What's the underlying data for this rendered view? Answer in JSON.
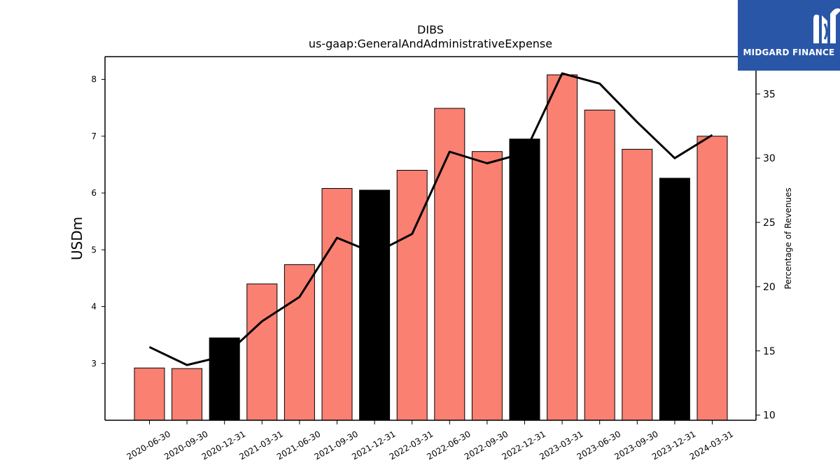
{
  "brand": {
    "name": "MIDGARD FINANCE",
    "color": "#2a56a8",
    "icon": "midgard-logo-icon"
  },
  "chart_data": {
    "type": "bar",
    "title": "DIBS",
    "subtitle": "us-gaap:GeneralAndAdministrativeExpense",
    "ylabel": "USDm",
    "y2label": "Percentage of Revenues",
    "ylim": [
      2.0,
      8.4
    ],
    "y2lim": [
      9.6,
      37.9
    ],
    "yticks": [
      3,
      4,
      5,
      6,
      7,
      8
    ],
    "y2ticks": [
      10,
      15,
      20,
      25,
      30,
      35
    ],
    "categories": [
      "2020-06-30",
      "2020-09-30",
      "2020-12-31",
      "2021-03-31",
      "2021-06-30",
      "2021-09-30",
      "2021-12-31",
      "2022-03-31",
      "2022-06-30",
      "2022-09-30",
      "2022-12-31",
      "2023-03-31",
      "2023-06-30",
      "2023-09-30",
      "2023-12-31",
      "2024-03-31"
    ],
    "series": [
      {
        "values": [
          2.92,
          2.91,
          3.45,
          4.4,
          4.74,
          6.08,
          6.05,
          6.4,
          7.49,
          6.73,
          6.95,
          8.08,
          7.46,
          6.77,
          6.26,
          7.0
        ]
      },
      {
        "axis": "right",
        "type": "line",
        "values": [
          15.3,
          13.9,
          14.6,
          17.3,
          19.2,
          23.8,
          22.6,
          24.1,
          30.5,
          29.6,
          30.4,
          36.6,
          35.8,
          32.8,
          30.0,
          31.8
        ]
      }
    ],
    "bar_colors": [
      "#fa8072",
      "#fa8072",
      "#000000",
      "#fa8072",
      "#fa8072",
      "#fa8072",
      "#000000",
      "#fa8072",
      "#fa8072",
      "#fa8072",
      "#000000",
      "#fa8072",
      "#fa8072",
      "#fa8072",
      "#000000",
      "#fa8072"
    ],
    "line_color": "#000000",
    "grid": false
  }
}
